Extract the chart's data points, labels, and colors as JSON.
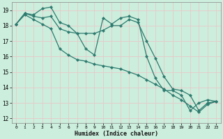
{
  "xlabel": "Humidex (Indice chaleur)",
  "bg_color": "#cceedd",
  "grid_color": "#e8c8c8",
  "line_color": "#2d7a6e",
  "ylim": [
    11.7,
    19.5
  ],
  "xlim": [
    -0.5,
    23.5
  ],
  "yticks": [
    12,
    13,
    14,
    15,
    16,
    17,
    18,
    19
  ],
  "xticks": [
    0,
    1,
    2,
    3,
    4,
    5,
    6,
    7,
    8,
    9,
    10,
    11,
    12,
    13,
    14,
    15,
    16,
    17,
    18,
    19,
    20,
    21,
    22,
    23
  ],
  "line1_x": [
    0,
    1,
    2,
    3,
    4,
    5,
    6,
    7,
    8,
    9,
    10,
    11,
    12,
    13,
    14,
    15,
    16,
    17,
    18,
    19,
    20,
    21,
    22,
    23
  ],
  "line1_y": [
    18.1,
    18.8,
    18.7,
    19.1,
    19.2,
    18.2,
    18.0,
    17.5,
    16.5,
    16.1,
    18.5,
    18.1,
    18.5,
    18.6,
    18.4,
    16.0,
    14.6,
    13.8,
    13.8,
    13.5,
    12.5,
    13.0,
    13.2,
    13.1
  ],
  "line2_x": [
    0,
    1,
    2,
    3,
    4,
    5,
    6,
    7,
    8,
    9,
    10,
    11,
    12,
    13,
    14,
    15,
    16,
    17,
    18,
    19,
    20,
    21,
    22,
    23
  ],
  "line2_y": [
    18.1,
    18.8,
    18.6,
    18.5,
    18.6,
    17.8,
    17.6,
    17.5,
    17.5,
    17.5,
    17.7,
    18.0,
    18.0,
    18.4,
    18.2,
    17.0,
    15.9,
    14.7,
    13.9,
    13.8,
    13.5,
    12.5,
    13.0,
    13.1
  ],
  "line3_x": [
    0,
    1,
    2,
    3,
    4,
    5,
    6,
    7,
    8,
    9,
    10,
    11,
    12,
    13,
    14,
    15,
    16,
    17,
    18,
    19,
    20,
    21,
    22,
    23
  ],
  "line3_y": [
    18.1,
    18.7,
    18.4,
    18.1,
    17.8,
    16.5,
    16.1,
    15.8,
    15.7,
    15.5,
    15.4,
    15.3,
    15.2,
    15.0,
    14.8,
    14.5,
    14.2,
    13.9,
    13.5,
    13.2,
    12.8,
    12.4,
    12.9,
    13.1
  ]
}
